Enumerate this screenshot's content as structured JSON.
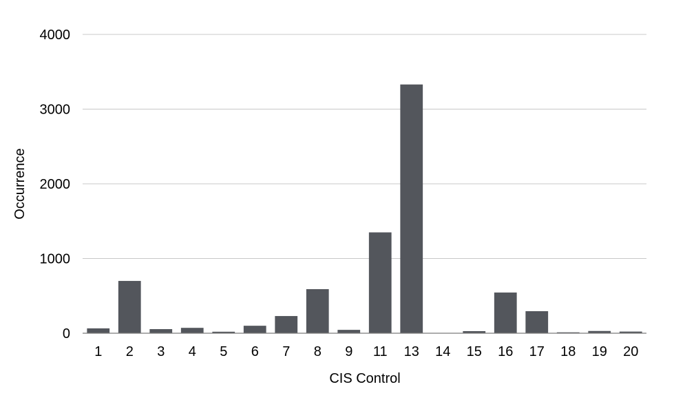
{
  "chart_data": {
    "type": "bar",
    "title": "",
    "xlabel": "CIS Control",
    "ylabel": "Occurrence",
    "categories": [
      "1",
      "2",
      "3",
      "4",
      "5",
      "6",
      "7",
      "8",
      "9",
      "11",
      "13",
      "14",
      "15",
      "16",
      "17",
      "18",
      "19",
      "20"
    ],
    "values": [
      65,
      700,
      55,
      72,
      20,
      100,
      230,
      590,
      45,
      1350,
      3330,
      3,
      28,
      545,
      295,
      12,
      30,
      22
    ],
    "ylim": [
      0,
      4000
    ],
    "yticks": [
      "0",
      "1000",
      "2000",
      "3000",
      "4000"
    ],
    "grid": true,
    "bar_color": "#53565c"
  }
}
